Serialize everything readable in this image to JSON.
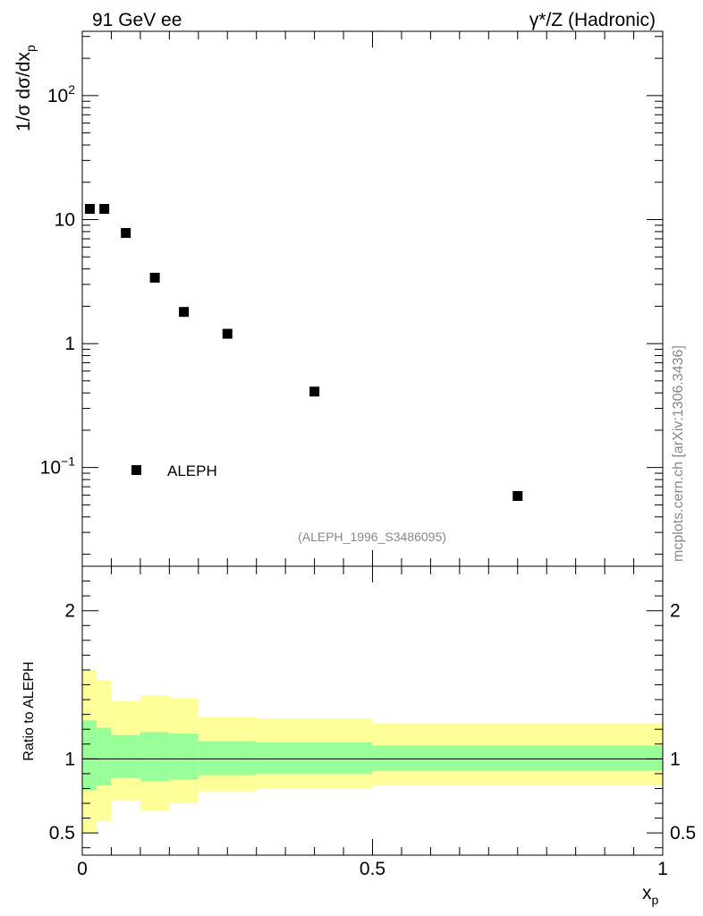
{
  "header": {
    "left": "91 GeV ee",
    "right": "γ*/Z (Hadronic)"
  },
  "watermark": "mcplots.cern.ch [arXiv:1306.3436]",
  "analysis_id": "(ALEPH_1996_S3486095)",
  "chart_data": [
    {
      "type": "scatter",
      "ylabel": "1/σ dσ/dx_p",
      "yscale": "log",
      "ylim": [
        0.016,
        330
      ],
      "xlim": [
        0,
        1
      ],
      "y_tick_labels": [
        "10^-1",
        "1",
        "10",
        "10^2"
      ],
      "legend": {
        "position": "bottom-left",
        "entries": [
          "ALEPH"
        ]
      },
      "colors": {
        "marker": "#000000"
      },
      "series": [
        {
          "name": "ALEPH",
          "x": [
            0.013,
            0.038,
            0.075,
            0.125,
            0.175,
            0.25,
            0.4,
            0.75
          ],
          "y": [
            12.2,
            12.2,
            7.8,
            3.4,
            1.8,
            1.2,
            0.41,
            0.059
          ]
        }
      ]
    },
    {
      "type": "area",
      "ylabel": "Ratio to ALEPH",
      "xlabel": "x_p",
      "xlim": [
        0,
        1
      ],
      "ylim": [
        0.35,
        2.3
      ],
      "x_tick_labels": [
        "0",
        "0.5",
        "1"
      ],
      "y_tick_labels": [
        "0.5",
        "1",
        "2"
      ],
      "colors": {
        "outer_band": "#ffff99",
        "inner_band": "#99ff99",
        "reference_line": "#000000"
      },
      "bins": [
        {
          "x0": 0.0,
          "x1": 0.025,
          "outer": [
            0.5,
            1.6
          ],
          "inner": [
            0.79,
            1.26
          ]
        },
        {
          "x0": 0.025,
          "x1": 0.05,
          "outer": [
            0.58,
            1.53
          ],
          "inner": [
            0.82,
            1.21
          ]
        },
        {
          "x0": 0.05,
          "x1": 0.1,
          "outer": [
            0.72,
            1.39
          ],
          "inner": [
            0.87,
            1.16
          ]
        },
        {
          "x0": 0.1,
          "x1": 0.15,
          "outer": [
            0.65,
            1.43
          ],
          "inner": [
            0.85,
            1.18
          ]
        },
        {
          "x0": 0.15,
          "x1": 0.2,
          "outer": [
            0.7,
            1.41
          ],
          "inner": [
            0.86,
            1.17
          ]
        },
        {
          "x0": 0.2,
          "x1": 0.3,
          "outer": [
            0.78,
            1.28
          ],
          "inner": [
            0.89,
            1.12
          ]
        },
        {
          "x0": 0.3,
          "x1": 0.5,
          "outer": [
            0.8,
            1.27
          ],
          "inner": [
            0.9,
            1.11
          ]
        },
        {
          "x0": 0.5,
          "x1": 1.0,
          "outer": [
            0.82,
            1.24
          ],
          "inner": [
            0.92,
            1.09
          ]
        }
      ],
      "reference_line": 1
    }
  ]
}
